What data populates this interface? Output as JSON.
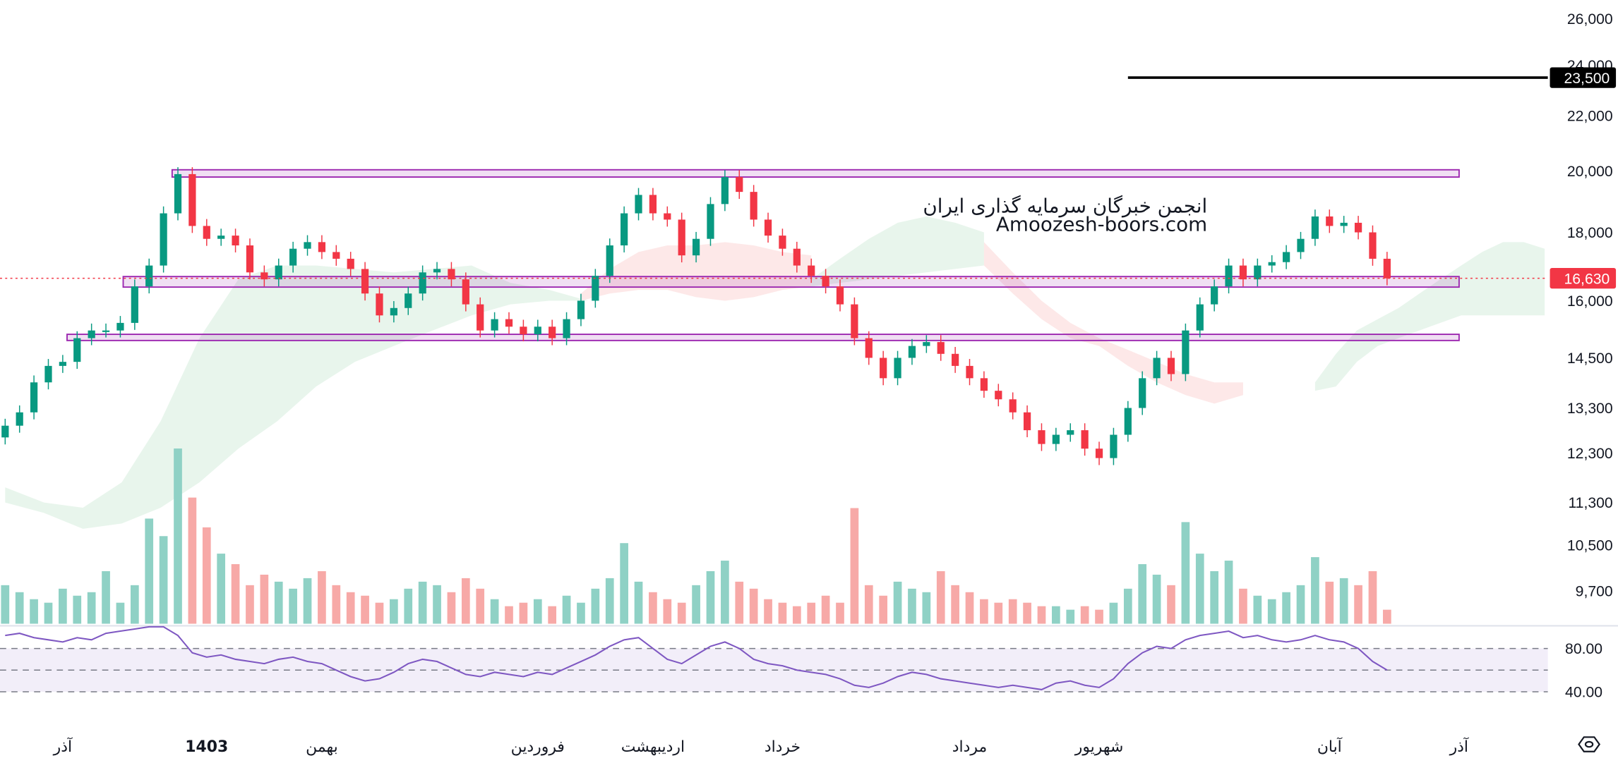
{
  "chart_data": {
    "type": "candlestick",
    "price_scale": "log",
    "colors": {
      "up": "#089981",
      "down": "#f23645",
      "volume_up": "#8fd1c5",
      "volume_down": "#f7a9a7",
      "rsi": "#7e57c2",
      "zone": "#9c27b0",
      "cloud_up": "#e6f4ea",
      "cloud_down": "#fde5e5",
      "last_price": "#f23645",
      "target": "#000000"
    },
    "y_ticks": [
      "26,000",
      "24,000",
      "22,000",
      "20,000",
      "18,000",
      "16,000",
      "14,500",
      "13,300",
      "12,300",
      "11,300",
      "10,500",
      "9,700"
    ],
    "y_tick_values": [
      26000,
      24000,
      22000,
      20000,
      18000,
      16000,
      14500,
      13300,
      12300,
      11300,
      10500,
      9700
    ],
    "x_ticks": [
      "آذر",
      "1403",
      "بهمن",
      "فروردین",
      "اردیبهشت",
      "خرداد",
      "مرداد",
      "شهریور",
      "آبان",
      "آذر"
    ],
    "x_tick_index": [
      4,
      14,
      22,
      37,
      45,
      54,
      67,
      76,
      92,
      101
    ],
    "closes": [
      12900,
      13200,
      13900,
      14300,
      14400,
      15000,
      15200,
      15200,
      15400,
      16400,
      17000,
      18600,
      19900,
      18200,
      17800,
      17900,
      17600,
      16800,
      16600,
      17000,
      17500,
      17700,
      17400,
      17200,
      16900,
      16200,
      15600,
      15800,
      16200,
      16800,
      16900,
      16600,
      15900,
      15200,
      15500,
      15300,
      15100,
      15300,
      15000,
      15500,
      16000,
      16700,
      17600,
      18600,
      19200,
      18600,
      18400,
      17300,
      17800,
      18900,
      19800,
      19300,
      18400,
      17900,
      17500,
      17000,
      16700,
      16400,
      15900,
      15000,
      14500,
      14000,
      14500,
      14800,
      14900,
      14600,
      14300,
      14000,
      13700,
      13500,
      13200,
      12800,
      12500,
      12700,
      12800,
      12400,
      12200,
      12700,
      13300,
      14000,
      14500,
      14100,
      15200,
      15900,
      16400,
      17000,
      16600,
      17000,
      17100,
      17400,
      17800,
      18500,
      18200,
      18300,
      18000,
      17200,
      16630
    ],
    "volume": [
      22,
      18,
      14,
      12,
      20,
      16,
      18,
      30,
      12,
      22,
      60,
      50,
      100,
      72,
      55,
      40,
      34,
      22,
      28,
      24,
      20,
      26,
      30,
      22,
      18,
      16,
      12,
      14,
      20,
      24,
      22,
      18,
      26,
      20,
      14,
      10,
      12,
      14,
      10,
      16,
      12,
      20,
      26,
      46,
      24,
      18,
      14,
      12,
      22,
      30,
      36,
      24,
      20,
      14,
      12,
      10,
      12,
      16,
      12,
      66,
      22,
      16,
      24,
      20,
      18,
      30,
      22,
      18,
      14,
      12,
      14,
      12,
      10,
      10,
      8,
      10,
      8,
      12,
      20,
      34,
      28,
      22,
      58,
      40,
      30,
      36,
      20,
      16,
      14,
      18,
      22,
      38,
      24,
      26,
      22,
      30,
      8
    ],
    "rsi": [
      82,
      84,
      80,
      78,
      76,
      80,
      78,
      84,
      86,
      88,
      90,
      90,
      82,
      66,
      62,
      64,
      60,
      58,
      56,
      60,
      62,
      58,
      56,
      50,
      44,
      40,
      42,
      48,
      56,
      60,
      58,
      52,
      46,
      44,
      48,
      46,
      44,
      48,
      46,
      52,
      58,
      64,
      72,
      78,
      80,
      70,
      60,
      56,
      64,
      72,
      76,
      70,
      60,
      56,
      54,
      50,
      48,
      46,
      42,
      36,
      34,
      38,
      44,
      48,
      46,
      42,
      40,
      38,
      36,
      34,
      36,
      34,
      32,
      38,
      40,
      36,
      34,
      42,
      56,
      66,
      72,
      70,
      78,
      82,
      84,
      86,
      80,
      82,
      78,
      76,
      78,
      82,
      78,
      76,
      70,
      58,
      50
    ],
    "cloud": [
      {
        "trend": "up",
        "from": 0,
        "upper": [
          11600,
          11300,
          11200,
          11700,
          13000,
          15000,
          16600,
          17000,
          17000,
          16900,
          16800,
          16900,
          17000,
          16500,
          16300,
          16000
        ],
        "lower": [
          11300,
          11100,
          10800,
          10900,
          11200,
          11700,
          12400,
          13000,
          13800,
          14400,
          14800,
          15200,
          15600,
          15900,
          16000,
          16000
        ]
      },
      {
        "trend": "down",
        "from": 40,
        "upper": [
          16200,
          16900,
          17400,
          17600,
          17600,
          17700,
          17600,
          17400,
          17300
        ],
        "lower": [
          16000,
          16200,
          16300,
          16300,
          16100,
          16000,
          16100,
          16300,
          16400
        ]
      },
      {
        "trend": "up",
        "from": 56,
        "upper": [
          16600,
          17200,
          17800,
          18300,
          18500,
          18300,
          18000
        ],
        "lower": [
          16400,
          16500,
          16600,
          16700,
          16800,
          16900,
          17000
        ]
      },
      {
        "trend": "down",
        "from": 68,
        "upper": [
          17700,
          16800,
          16000,
          15400,
          15000,
          14700,
          14400,
          14100,
          13900,
          13900
        ],
        "lower": [
          17000,
          16200,
          15500,
          15000,
          14800,
          14300,
          13900,
          13600,
          13400,
          13600
        ]
      },
      {
        "trend": "up",
        "from": 91,
        "upper": [
          13900,
          14600,
          15200,
          15500,
          15800,
          16200,
          16600,
          17000,
          17400,
          17700,
          17700,
          17500
        ],
        "lower": [
          13700,
          13800,
          14400,
          14800,
          15000,
          15200,
          15400,
          15600,
          15600,
          15600,
          15600,
          15600
        ]
      }
    ],
    "zones": [
      {
        "from_index": 11.6,
        "top": 20050,
        "bottom": 19800
      },
      {
        "from_index": 8.2,
        "top": 16680,
        "bottom": 16380
      },
      {
        "from_index": 4.3,
        "top": 15100,
        "bottom": 14950
      }
    ],
    "target_line": {
      "value": 23500,
      "label": "23,500",
      "from_index": 78
    },
    "last_price": {
      "value": 16630,
      "label": "16,630"
    },
    "rsi_levels": [
      "80.00",
      "40.00"
    ],
    "rsi_level_values": [
      70,
      50,
      30
    ]
  },
  "watermark": {
    "line1": "انجمن خبرگان سرمایه گذاری ایران",
    "line2": "Amoozesh-boors.com"
  },
  "settings_icon": "settings-hexagon-icon"
}
